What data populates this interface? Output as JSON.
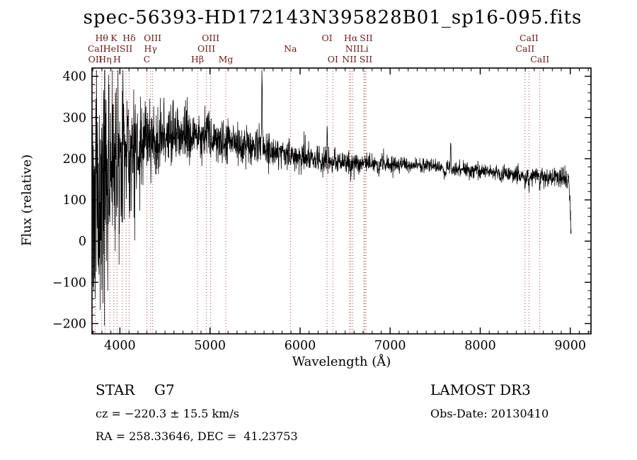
{
  "title": "spec-56393-HD172143N395828B01_sp16-095.fits",
  "chart_data": {
    "type": "line",
    "xlabel": "Wavelength (Å)",
    "ylabel": "Flux (relative)",
    "xlim": [
      3690,
      9230
    ],
    "ylim": [
      -225,
      420
    ],
    "x_major_ticks": [
      4000,
      5000,
      6000,
      7000,
      8000,
      9000
    ],
    "x_minor_step": 100,
    "y_major_ticks": [
      -200,
      -100,
      0,
      100,
      200,
      300,
      400
    ],
    "y_minor_step": 20,
    "grid": false,
    "legend": "none",
    "axis_color": "#000000",
    "spectrum_color": "#000000",
    "line_marker_color": "#a34848",
    "line_label_color": "#6b1a1a",
    "noise_seed": 20130410,
    "line_markers": [
      3727,
      3798,
      3835,
      3889,
      3933,
      3968,
      4026,
      4068,
      4102,
      4300,
      4340,
      4363,
      4861,
      4959,
      5007,
      5175,
      5893,
      6300,
      6364,
      6548,
      6563,
      6583,
      6708,
      6717,
      6731,
      8498,
      8542,
      8662
    ],
    "line_labels": [
      {
        "text": "Hθ",
        "wl": 3798,
        "row": 0
      },
      {
        "text": "K",
        "wl": 3933,
        "row": 0
      },
      {
        "text": "Hδ",
        "wl": 4102,
        "row": 0
      },
      {
        "text": "OIII",
        "wl": 4363,
        "row": 0
      },
      {
        "text": "OIII",
        "wl": 5007,
        "row": 0
      },
      {
        "text": "OI",
        "wl": 6300,
        "row": 0
      },
      {
        "text": "Hα",
        "wl": 6563,
        "row": 0
      },
      {
        "text": "SII",
        "wl": 6735,
        "row": 0
      },
      {
        "text": "CaII",
        "wl": 8542,
        "row": 0
      },
      {
        "text": "CaII",
        "wl": 3747,
        "row": 1
      },
      {
        "text": "HeI",
        "wl": 3905,
        "row": 1
      },
      {
        "text": "SII",
        "wl": 4068,
        "row": 1
      },
      {
        "text": "Hγ",
        "wl": 4340,
        "row": 1
      },
      {
        "text": "OIII",
        "wl": 4959,
        "row": 1
      },
      {
        "text": "Na",
        "wl": 5893,
        "row": 1
      },
      {
        "text": "NII",
        "wl": 6583,
        "row": 1
      },
      {
        "text": "Li",
        "wl": 6712,
        "row": 1
      },
      {
        "text": "CaII",
        "wl": 8498,
        "row": 1
      },
      {
        "text": "OII",
        "wl": 3727,
        "row": 2
      },
      {
        "text": "Hη",
        "wl": 3835,
        "row": 2
      },
      {
        "text": "H",
        "wl": 3968,
        "row": 2
      },
      {
        "text": "C",
        "wl": 4300,
        "row": 2
      },
      {
        "text": "Hβ",
        "wl": 4861,
        "row": 2
      },
      {
        "text": "Mg",
        "wl": 5175,
        "row": 2
      },
      {
        "text": "OI",
        "wl": 6364,
        "row": 2
      },
      {
        "text": "NII",
        "wl": 6548,
        "row": 2
      },
      {
        "text": "SII",
        "wl": 6731,
        "row": 2
      },
      {
        "text": "CaII",
        "wl": 8662,
        "row": 2
      }
    ],
    "continuum": [
      [
        3695,
        50
      ],
      [
        3715,
        105
      ],
      [
        3745,
        145
      ],
      [
        3790,
        168
      ],
      [
        3850,
        180
      ],
      [
        3920,
        192
      ],
      [
        4000,
        205
      ],
      [
        4080,
        212
      ],
      [
        4160,
        220
      ],
      [
        4250,
        230
      ],
      [
        4350,
        240
      ],
      [
        4450,
        248
      ],
      [
        4550,
        252
      ],
      [
        4650,
        257
      ],
      [
        4750,
        262
      ],
      [
        4850,
        266
      ],
      [
        4950,
        260
      ],
      [
        5050,
        252
      ],
      [
        5150,
        246
      ],
      [
        5250,
        241
      ],
      [
        5350,
        236
      ],
      [
        5450,
        231
      ],
      [
        5550,
        226
      ],
      [
        5650,
        220
      ],
      [
        5750,
        216
      ],
      [
        5850,
        212
      ],
      [
        5950,
        208
      ],
      [
        6050,
        204
      ],
      [
        6150,
        201
      ],
      [
        6250,
        198
      ],
      [
        6350,
        194
      ],
      [
        6450,
        192
      ],
      [
        6550,
        191
      ],
      [
        6650,
        190
      ],
      [
        6750,
        190
      ],
      [
        6850,
        189
      ],
      [
        6950,
        188
      ],
      [
        7050,
        187
      ],
      [
        7150,
        186
      ],
      [
        7250,
        185
      ],
      [
        7350,
        184
      ],
      [
        7450,
        183
      ],
      [
        7550,
        181
      ],
      [
        7650,
        179
      ],
      [
        7750,
        176
      ],
      [
        7850,
        174
      ],
      [
        7950,
        172
      ],
      [
        8050,
        170
      ],
      [
        8150,
        168
      ],
      [
        8250,
        166
      ],
      [
        8350,
        164
      ],
      [
        8450,
        162
      ],
      [
        8550,
        159
      ],
      [
        8650,
        158
      ],
      [
        8750,
        157
      ],
      [
        8850,
        157
      ],
      [
        8930,
        156
      ],
      [
        8980,
        148
      ],
      [
        9000,
        90
      ],
      [
        9010,
        15
      ]
    ],
    "noise_amplitude": [
      [
        3695,
        190
      ],
      [
        3720,
        210
      ],
      [
        3760,
        185
      ],
      [
        3820,
        160
      ],
      [
        3880,
        150
      ],
      [
        3940,
        130
      ],
      [
        4000,
        95
      ],
      [
        4060,
        80
      ],
      [
        4140,
        68
      ],
      [
        4250,
        55
      ],
      [
        4400,
        45
      ],
      [
        4600,
        36
      ],
      [
        4800,
        30
      ],
      [
        5000,
        27
      ],
      [
        5200,
        25
      ],
      [
        5400,
        23
      ],
      [
        5600,
        21
      ],
      [
        5800,
        19
      ],
      [
        6000,
        17
      ],
      [
        6200,
        16
      ],
      [
        6400,
        14
      ],
      [
        6600,
        12
      ],
      [
        6800,
        11
      ],
      [
        7000,
        10
      ],
      [
        7300,
        9
      ],
      [
        7600,
        9
      ],
      [
        8000,
        9
      ],
      [
        8300,
        10
      ],
      [
        8600,
        11
      ],
      [
        8900,
        13
      ],
      [
        9010,
        14
      ]
    ],
    "emission_spikes": [
      {
        "wl": 5577,
        "amp": 195,
        "sigma": 3.5
      },
      {
        "wl": 6301,
        "amp": 88,
        "sigma": 3
      },
      {
        "wl": 7672,
        "amp": 66,
        "sigma": 3.5
      }
    ],
    "absorption_dips": [
      {
        "wl": 3933,
        "depth": 70,
        "sigma": 5
      },
      {
        "wl": 3968,
        "depth": 60,
        "sigma": 5
      },
      {
        "wl": 4102,
        "depth": 35,
        "sigma": 5
      },
      {
        "wl": 4340,
        "depth": 28,
        "sigma": 5
      },
      {
        "wl": 4861,
        "depth": 25,
        "sigma": 5
      },
      {
        "wl": 5175,
        "depth": 18,
        "sigma": 7
      },
      {
        "wl": 5893,
        "depth": 20,
        "sigma": 5
      },
      {
        "wl": 6563,
        "depth": 22,
        "sigma": 5
      },
      {
        "wl": 6870,
        "depth": 16,
        "sigma": 9
      },
      {
        "wl": 7605,
        "depth": 22,
        "sigma": 11
      },
      {
        "wl": 8230,
        "depth": 10,
        "sigma": 12
      },
      {
        "wl": 8498,
        "depth": 25,
        "sigma": 5
      },
      {
        "wl": 8542,
        "depth": 30,
        "sigma": 5
      },
      {
        "wl": 8662,
        "depth": 28,
        "sigma": 5
      }
    ]
  },
  "footer": {
    "class_label": "STAR",
    "subclass": "G7",
    "survey": "LAMOST DR3",
    "cz": "cz = −220.3 ± 15.5 km/s",
    "obs_date": "Obs-Date: 20130410",
    "coords": "RA = 258.33646, DEC =  41.23753"
  }
}
